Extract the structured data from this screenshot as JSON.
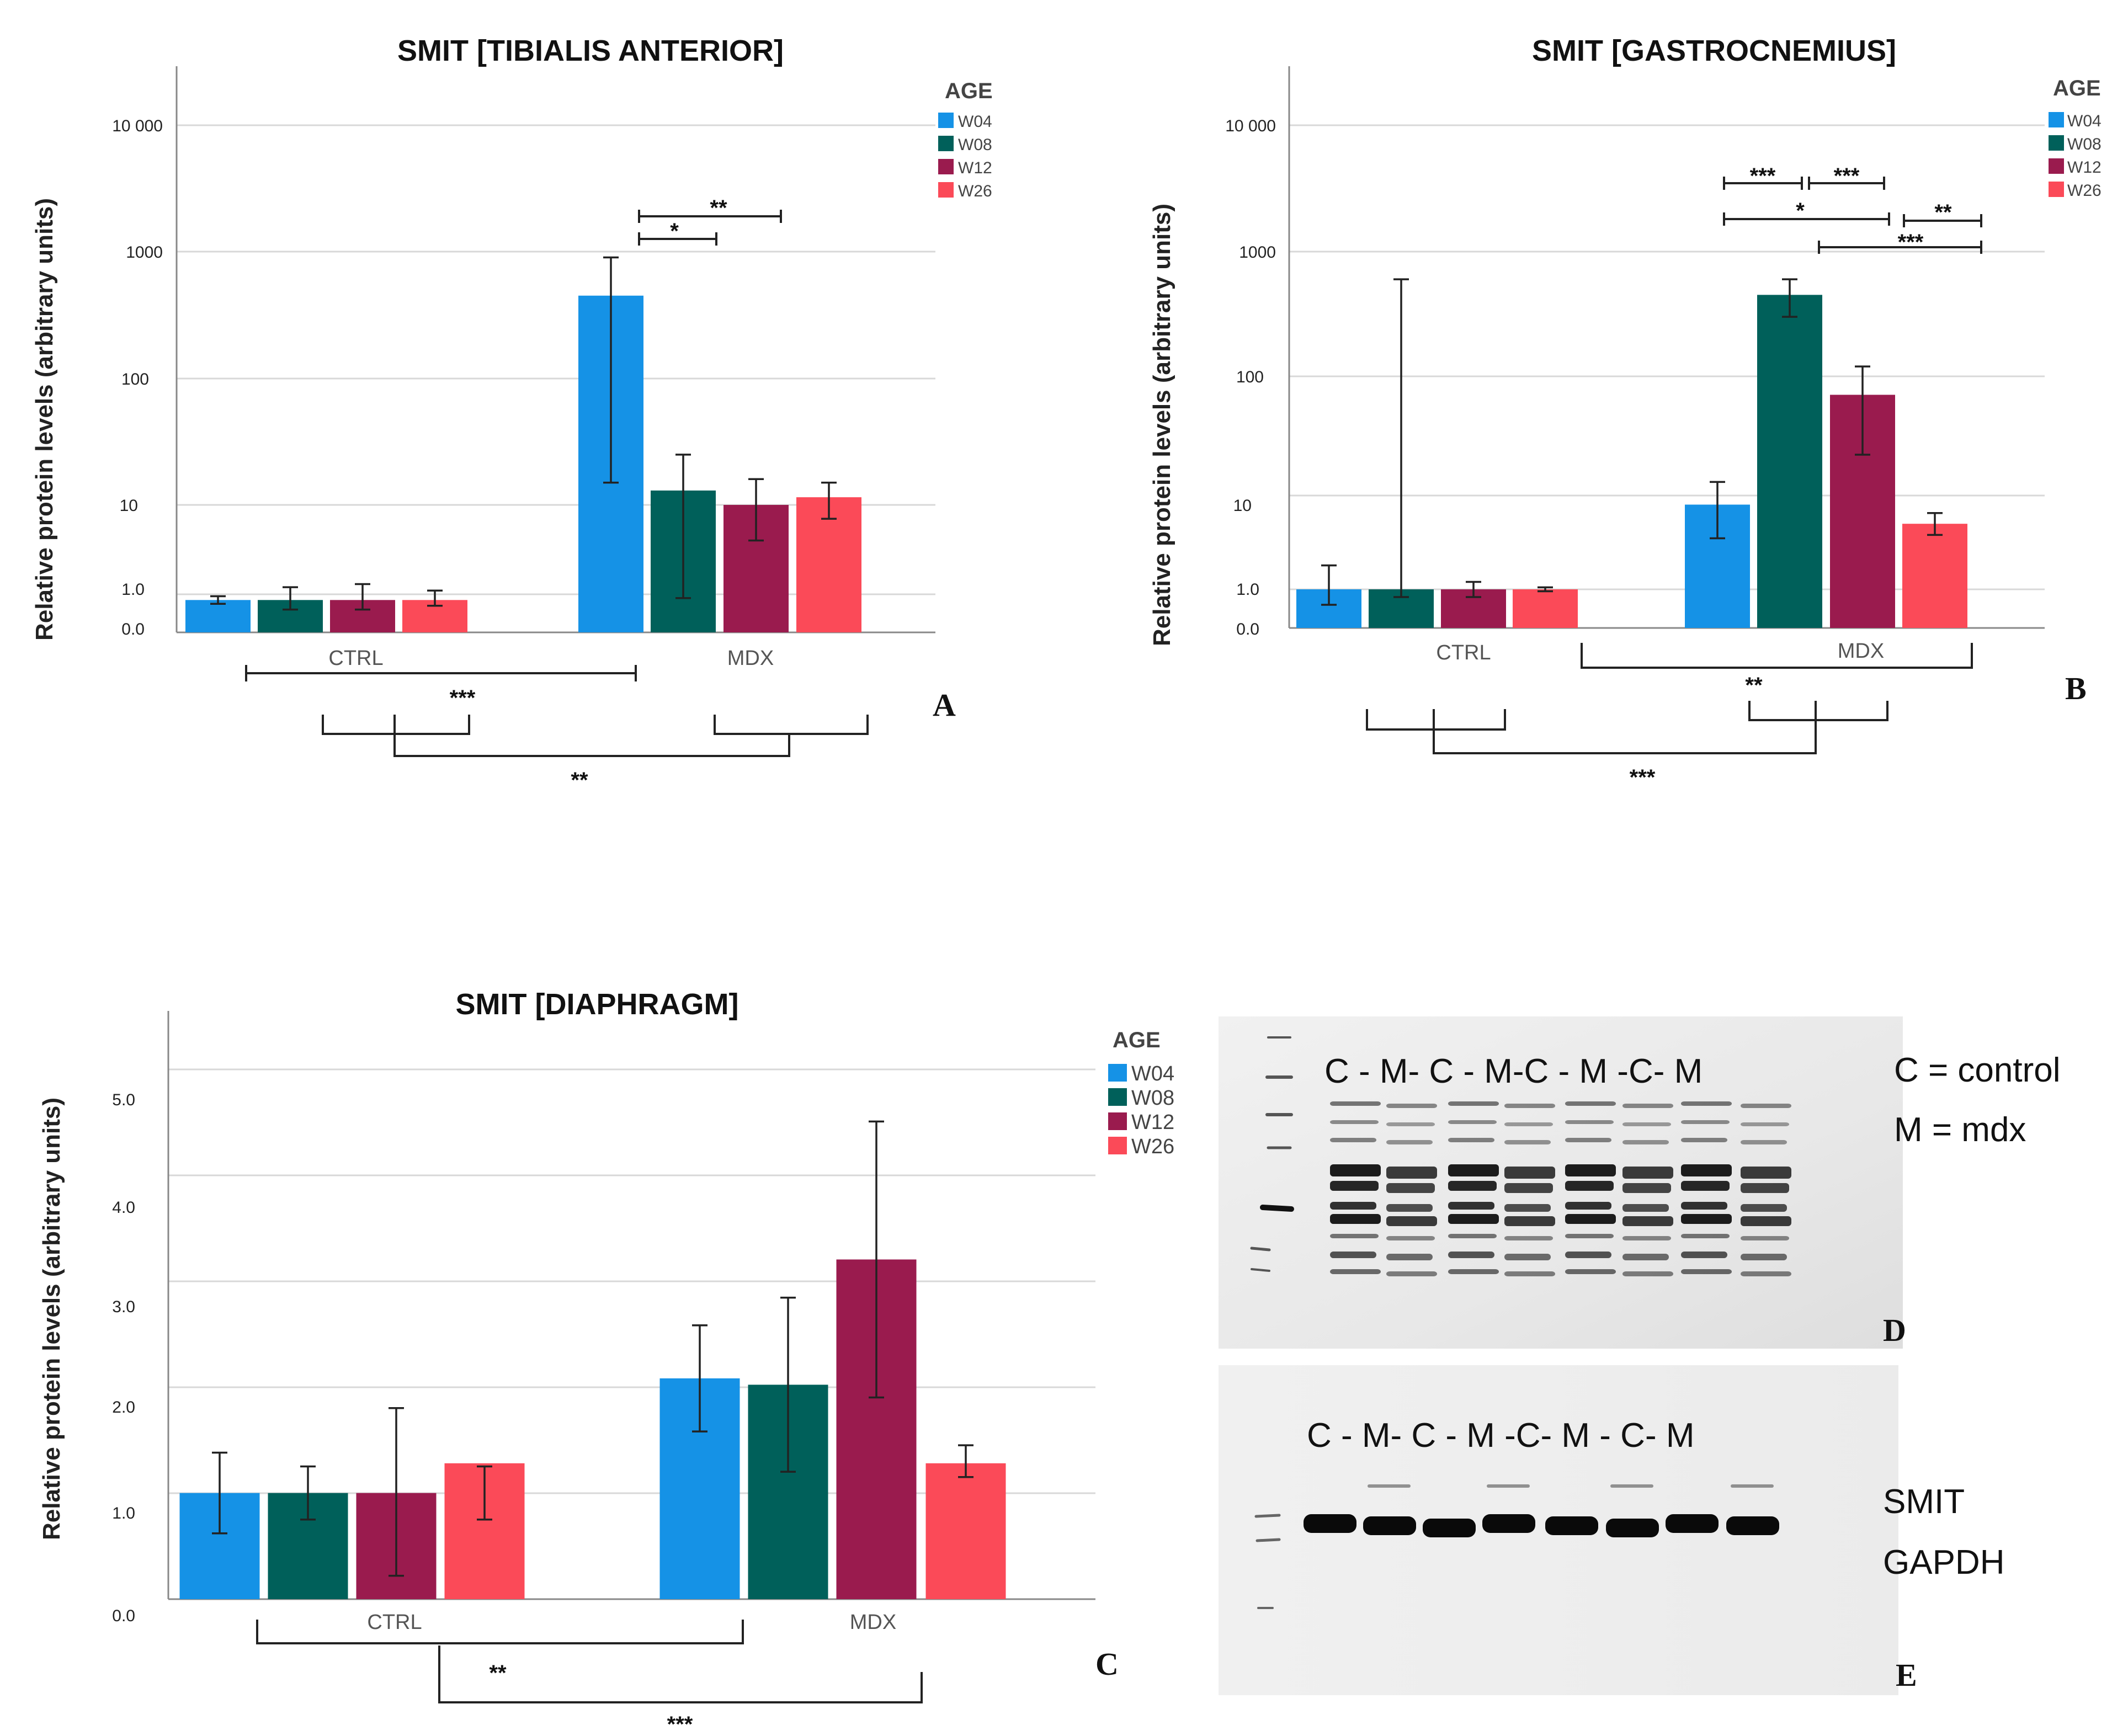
{
  "colors": {
    "W04": "#1592e6",
    "W08": "#00605a",
    "W12": "#9a1b4e",
    "W26": "#fb4a58"
  },
  "legend": {
    "title": "AGE",
    "items": [
      "W04",
      "W08",
      "W12",
      "W26"
    ]
  },
  "chart_data": [
    {
      "id": "A",
      "type": "bar",
      "scale": "log",
      "panel_label": "A",
      "title": "SMIT [TIBIALIS ANTERIOR]",
      "ylabel": "Relative protein levels (arbitrary units)",
      "y_ticks": [
        "10 000",
        "1000",
        "100",
        "10",
        "1.0",
        "0.0"
      ],
      "categories": [
        "CTRL",
        "MDX"
      ],
      "series": [
        {
          "name": "W04",
          "values": [
            0.85,
            450
          ],
          "err_low": [
            0.75,
            15
          ],
          "err_high": [
            0.95,
            900
          ]
        },
        {
          "name": "W08",
          "values": [
            0.85,
            13
          ],
          "err_low": [
            0.6,
            0.9
          ],
          "err_high": [
            1.2,
            25
          ]
        },
        {
          "name": "W12",
          "values": [
            0.85,
            10
          ],
          "err_low": [
            0.6,
            4
          ],
          "err_high": [
            1.3,
            16
          ]
        },
        {
          "name": "W26",
          "values": [
            0.85,
            11.5
          ],
          "err_low": [
            0.7,
            7
          ],
          "err_high": [
            1.1,
            15
          ]
        }
      ],
      "annotations": [
        "**",
        "*",
        "***",
        "**"
      ]
    },
    {
      "id": "B",
      "type": "bar",
      "scale": "log",
      "panel_label": "B",
      "title": "SMIT [GASTROCNEMIUS]",
      "ylabel": "Relative protein levels (arbitrary units)",
      "y_ticks": [
        "10 000",
        "1000",
        "100",
        "10",
        "1.0",
        "0.0"
      ],
      "categories": [
        "CTRL",
        "MDX"
      ],
      "series": [
        {
          "name": "W04",
          "values": [
            1.0,
            8
          ],
          "err_low": [
            0.6,
            3.5
          ],
          "err_high": [
            1.8,
            13
          ]
        },
        {
          "name": "W08",
          "values": [
            1.0,
            450
          ],
          "err_low": [
            0.8,
            300
          ],
          "err_high": [
            600,
            600
          ]
        },
        {
          "name": "W12",
          "values": [
            1.0,
            70
          ],
          "err_low": [
            0.8,
            22
          ],
          "err_high": [
            1.2,
            120
          ]
        },
        {
          "name": "W26",
          "values": [
            1.0,
            5
          ],
          "err_low": [
            0.95,
            3.8
          ],
          "err_high": [
            1.05,
            6.5
          ]
        }
      ],
      "annotations": [
        "***",
        "***",
        "*",
        "**",
        "***",
        "**",
        "***"
      ]
    },
    {
      "id": "C",
      "type": "bar",
      "scale": "linear",
      "panel_label": "C",
      "title": "SMIT [DIAPHRAGM]",
      "ylabel": "Relative protein levels (arbitrary units)",
      "y_ticks": [
        "5.0",
        "4.0",
        "3.0",
        "2.0",
        "1.0",
        "0.0"
      ],
      "ylim": [
        0,
        5.5
      ],
      "categories": [
        "CTRL",
        "MDX"
      ],
      "series": [
        {
          "name": "W04",
          "values": [
            1.0,
            2.08
          ],
          "err_low": [
            0.62,
            1.58
          ],
          "err_high": [
            1.38,
            2.58
          ]
        },
        {
          "name": "W08",
          "values": [
            1.0,
            2.02
          ],
          "err_low": [
            0.75,
            1.2
          ],
          "err_high": [
            1.25,
            2.84
          ]
        },
        {
          "name": "W12",
          "values": [
            1.0,
            3.2
          ],
          "err_low": [
            0.22,
            1.9
          ],
          "err_high": [
            1.8,
            4.5
          ]
        },
        {
          "name": "W26",
          "values": [
            1.28,
            1.28
          ],
          "err_low": [
            0.75,
            1.15
          ],
          "err_high": [
            1.25,
            1.45
          ]
        }
      ],
      "annotations": [
        "**",
        "***"
      ]
    }
  ],
  "blots": {
    "D": {
      "panel_label": "D",
      "lane_labels": "C - M- C - M-C - M -C- M",
      "key_control": "C = control",
      "key_mdx": "M = mdx"
    },
    "E": {
      "panel_label": "E",
      "lane_labels": "C - M- C - M -C- M - C- M",
      "band_smit": "SMIT",
      "band_gapdh": "GAPDH"
    }
  }
}
